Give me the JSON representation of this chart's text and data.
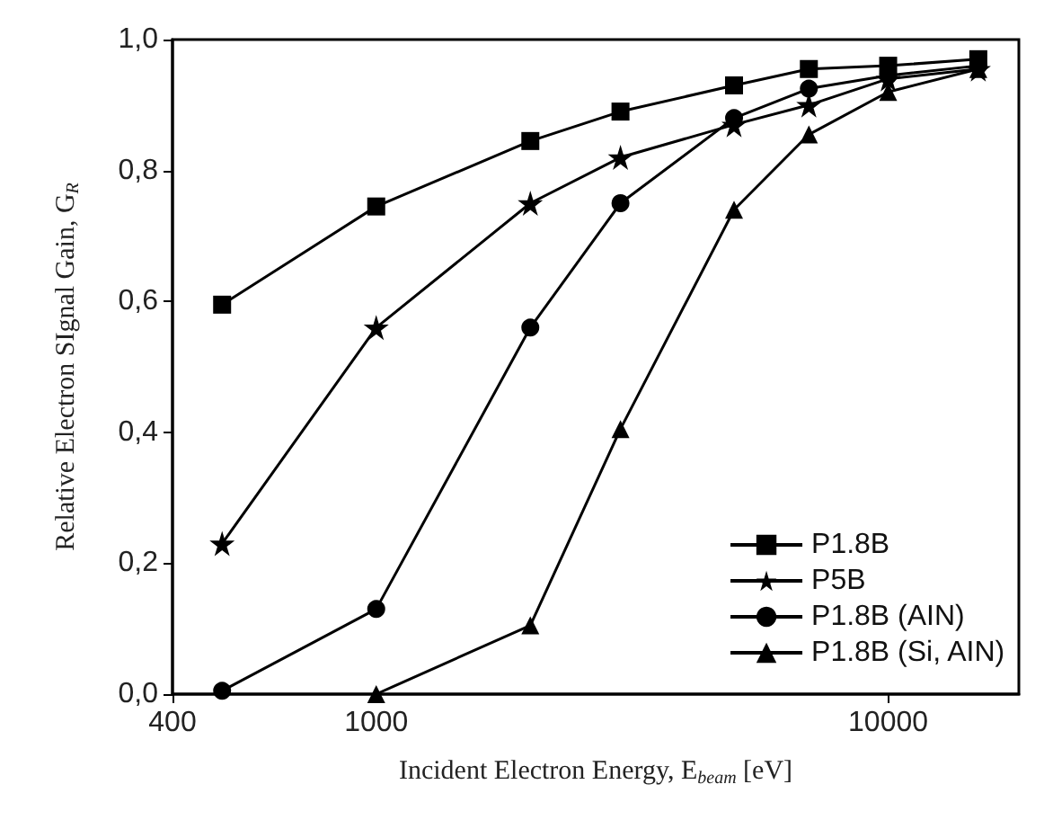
{
  "chart_data": {
    "type": "line",
    "xlabel": "Incident Electron Energy, E$_{beam}$ [eV]",
    "ylabel": "Relative Electron SIgnal Gain, G$_{R}$",
    "x": [
      500,
      1000,
      2000,
      3000,
      5000,
      7000,
      10000,
      15000
    ],
    "series": [
      {
        "name": "P1.8B",
        "color": "#000000",
        "marker": "square",
        "values": [
          0.595,
          0.745,
          0.845,
          0.89,
          0.93,
          0.955,
          0.96,
          0.97
        ]
      },
      {
        "name": "P5B",
        "color": "#000000",
        "marker": "star",
        "values": [
          0.23,
          0.56,
          0.75,
          0.82,
          0.87,
          0.9,
          0.94,
          0.955
        ]
      },
      {
        "name": "P1.8B (AIN)",
        "color": "#000000",
        "marker": "circle",
        "values": [
          0.005,
          0.13,
          0.56,
          0.75,
          0.88,
          0.925,
          0.945,
          0.96
        ]
      },
      {
        "name": "P1.8B (Si, AIN)",
        "color": "#000000",
        "marker": "triangle",
        "values": [
          null,
          0.0,
          0.105,
          0.405,
          0.74,
          0.855,
          0.92,
          0.955
        ]
      }
    ],
    "log": "x",
    "xlim": [
      400,
      18000
    ],
    "xticks": [
      400,
      1000,
      10000
    ],
    "ylim": [
      0,
      1
    ],
    "yticks": [
      {
        "value": 0,
        "label": "0,0"
      },
      {
        "value": 0.2,
        "label": "0,2"
      },
      {
        "value": 0.4,
        "label": "0,4"
      },
      {
        "value": 0.6,
        "label": "0,6"
      },
      {
        "value": 0.8,
        "label": "0,8"
      },
      {
        "value": 1,
        "label": "1,0"
      }
    ],
    "grid": false,
    "legend": "bottom right",
    "line_style": "solid"
  }
}
